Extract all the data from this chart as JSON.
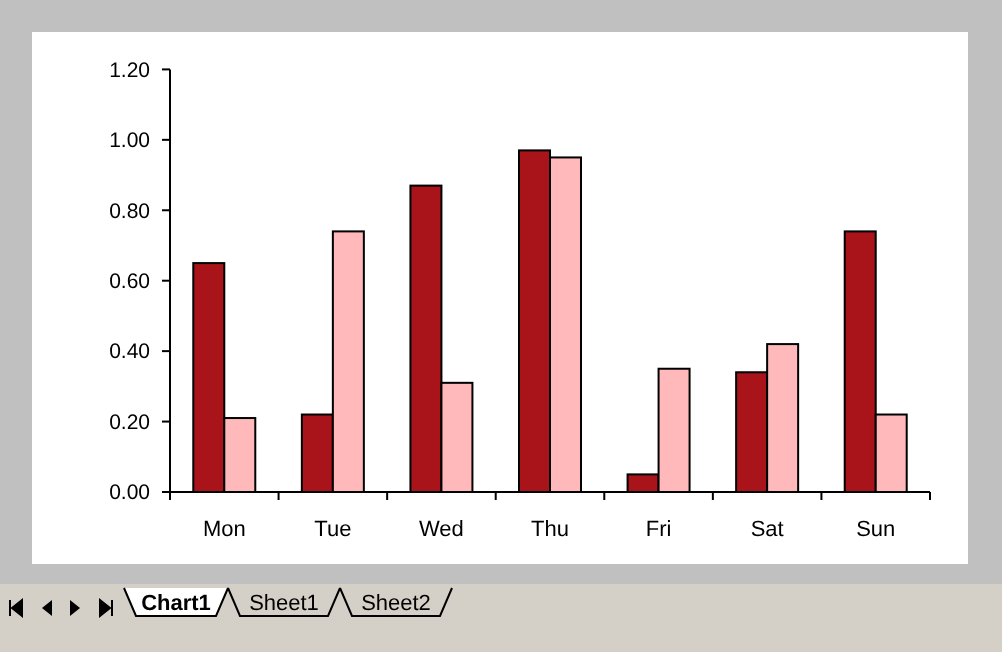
{
  "chart_data": {
    "type": "bar",
    "categories": [
      "Mon",
      "Tue",
      "Wed",
      "Thu",
      "Fri",
      "Sat",
      "Sun"
    ],
    "series": [
      {
        "color": "#a8141a",
        "values": [
          0.65,
          0.22,
          0.87,
          0.97,
          0.05,
          0.34,
          0.74
        ]
      },
      {
        "color": "#ffb9bb",
        "values": [
          0.21,
          0.74,
          0.31,
          0.95,
          0.35,
          0.42,
          0.22
        ]
      }
    ],
    "ylim": [
      0,
      1.2
    ],
    "yticks": [
      {
        "value": 0,
        "label": "0.00"
      },
      {
        "value": 0.2,
        "label": "0.20"
      },
      {
        "value": 0.4,
        "label": "0.40"
      },
      {
        "value": 0.6,
        "label": "0.60"
      },
      {
        "value": 0.8,
        "label": "0.80"
      },
      {
        "value": 1,
        "label": "1.00"
      },
      {
        "value": 1.2,
        "label": "1.20"
      }
    ],
    "grid": false,
    "annotations": [
      "Chart1",
      "Sheet1",
      "Sheet2"
    ]
  }
}
